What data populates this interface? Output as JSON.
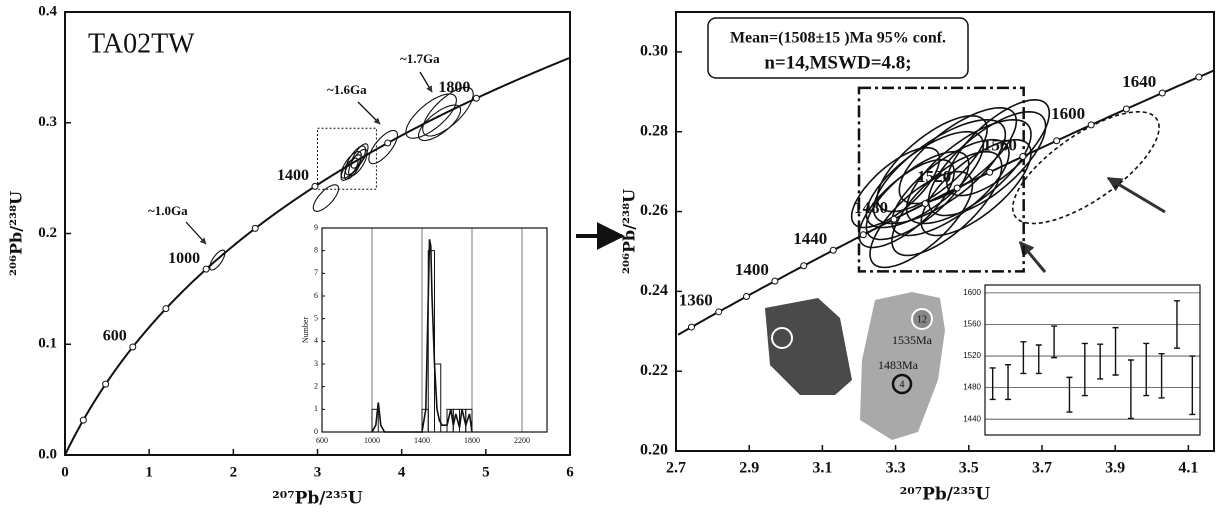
{
  "chart_data": [
    {
      "type": "concordia",
      "title": "TA02TW",
      "x_label": "²⁰⁷Pb/²³⁵U",
      "y_label": "²⁰⁶Pb/²³⁸U",
      "xlim": [
        0,
        6
      ],
      "ylim": [
        0,
        0.4
      ],
      "xticks": [
        0,
        1,
        2,
        3,
        4,
        5,
        6
      ],
      "yticks": [
        {
          "value": 0,
          "label": "0.0"
        },
        0.1,
        0.2,
        0.3,
        0.4
      ],
      "concordia_ticks": [
        200,
        400,
        600,
        800,
        1000,
        1200,
        1400,
        1600,
        1800
      ],
      "concordia_labels": [
        600,
        1000,
        1400,
        1800
      ],
      "annotations": [
        "~1.0Ga",
        "~1.6Ga",
        "~1.7Ga"
      ],
      "ellipses": [
        {
          "x": 1.81,
          "y": 0.176,
          "sx": 0.09,
          "sy": 0.009
        },
        {
          "x": 3.1,
          "y": 0.232,
          "sx": 0.15,
          "sy": 0.012
        },
        {
          "x": 3.4,
          "y": 0.262,
          "sx": 0.12,
          "sy": 0.012
        },
        {
          "x": 3.45,
          "y": 0.266,
          "sx": 0.12,
          "sy": 0.013
        },
        {
          "x": 3.42,
          "y": 0.26,
          "sx": 0.1,
          "sy": 0.011
        },
        {
          "x": 3.48,
          "y": 0.264,
          "sx": 0.11,
          "sy": 0.012
        },
        {
          "x": 3.38,
          "y": 0.258,
          "sx": 0.1,
          "sy": 0.01
        },
        {
          "x": 3.5,
          "y": 0.27,
          "sx": 0.1,
          "sy": 0.011
        },
        {
          "x": 3.78,
          "y": 0.278,
          "sx": 0.17,
          "sy": 0.015
        },
        {
          "x": 4.35,
          "y": 0.306,
          "sx": 0.3,
          "sy": 0.02
        },
        {
          "x": 4.55,
          "y": 0.31,
          "sx": 0.3,
          "sy": 0.022
        },
        {
          "x": 4.45,
          "y": 0.3,
          "sx": 0.25,
          "sy": 0.016
        }
      ],
      "zoom_box": {
        "xlim": [
          3.0,
          3.7
        ],
        "ylim": [
          0.24,
          0.295
        ],
        "style": "dotted"
      }
    },
    {
      "type": "histogram",
      "y_label": "Number",
      "xlim": [
        600,
        2400
      ],
      "ylim": [
        0,
        9
      ],
      "xticks": [
        600,
        1000,
        1400,
        1800,
        2200
      ],
      "yticks": [
        0,
        1,
        2,
        3,
        4,
        5,
        6,
        7,
        8,
        9
      ],
      "grid": true,
      "bins": [
        1000,
        1050,
        1100,
        1150,
        1200,
        1250,
        1300,
        1350,
        1400,
        1450,
        1500,
        1550,
        1600,
        1650,
        1700,
        1750,
        1800
      ],
      "counts": [
        1,
        0,
        0,
        0,
        0,
        0,
        0,
        0,
        1,
        8,
        3,
        0,
        1,
        1,
        1,
        1
      ],
      "density": {
        "x": [
          1000,
          1030,
          1050,
          1070,
          1100,
          1400,
          1430,
          1450,
          1460,
          1470,
          1480,
          1500,
          1520,
          1540,
          1560,
          1600,
          1630,
          1650,
          1670,
          1700,
          1720,
          1750,
          1780,
          1800
        ],
        "values": [
          0,
          0.3,
          1.3,
          0.3,
          0,
          0,
          1,
          6,
          8.5,
          8.2,
          6,
          3,
          1,
          0.5,
          0.3,
          0.3,
          1,
          0.3,
          0.8,
          0.2,
          1,
          0.3,
          0.8,
          0
        ]
      }
    },
    {
      "type": "concordia",
      "x_label": "²⁰⁷Pb/²³⁵U",
      "y_label": "²⁰⁶Pb/²³⁸U",
      "xlim": [
        2.7,
        4.17
      ],
      "ylim": [
        0.2,
        0.31
      ],
      "xticks": [
        2.7,
        2.9,
        3.1,
        3.3,
        3.5,
        3.7,
        3.9,
        4.1
      ],
      "yticks": [
        {
          "value": 0.2,
          "label": "0.20"
        },
        0.22,
        0.24,
        0.26,
        0.28,
        {
          "value": 0.3,
          "label": "0.30"
        }
      ],
      "concordia_ticks": [
        1340,
        1360,
        1380,
        1400,
        1420,
        1440,
        1460,
        1480,
        1500,
        1520,
        1540,
        1560,
        1580,
        1600,
        1620,
        1640,
        1660
      ],
      "concordia_labels": [
        1360,
        1400,
        1440,
        1480,
        1520,
        1560,
        1600,
        1640
      ],
      "stats": [
        "Mean=(1508±15 )Ma 95% conf.",
        "n=14,MSWD=4.8;"
      ],
      "image_labels": [
        "12",
        "1535Ma",
        "1483Ma",
        "4"
      ],
      "ellipses": [
        {
          "x": 3.38,
          "y": 0.268,
          "sx": 0.16,
          "sy": 0.012
        },
        {
          "x": 3.42,
          "y": 0.27,
          "sx": 0.18,
          "sy": 0.013
        },
        {
          "x": 3.36,
          "y": 0.264,
          "sx": 0.14,
          "sy": 0.011
        },
        {
          "x": 3.45,
          "y": 0.266,
          "sx": 0.16,
          "sy": 0.012
        },
        {
          "x": 3.4,
          "y": 0.272,
          "sx": 0.15,
          "sy": 0.012
        },
        {
          "x": 3.5,
          "y": 0.27,
          "sx": 0.17,
          "sy": 0.013
        },
        {
          "x": 3.33,
          "y": 0.262,
          "sx": 0.13,
          "sy": 0.011
        },
        {
          "x": 3.47,
          "y": 0.274,
          "sx": 0.16,
          "sy": 0.012
        },
        {
          "x": 3.44,
          "y": 0.262,
          "sx": 0.15,
          "sy": 0.013
        },
        {
          "x": 3.55,
          "y": 0.272,
          "sx": 0.16,
          "sy": 0.013
        },
        {
          "x": 3.37,
          "y": 0.258,
          "sx": 0.14,
          "sy": 0.012
        },
        {
          "x": 3.52,
          "y": 0.266,
          "sx": 0.15,
          "sy": 0.012
        },
        {
          "x": 3.3,
          "y": 0.266,
          "sx": 0.12,
          "sy": 0.01
        },
        {
          "x": 3.58,
          "y": 0.276,
          "sx": 0.14,
          "sy": 0.012
        },
        {
          "x": 3.82,
          "y": 0.271,
          "sx": 0.2,
          "sy": 0.014,
          "line_style": "dashed"
        }
      ],
      "zoom_box": {
        "xlim": [
          3.2,
          3.65
        ],
        "ylim": [
          0.245,
          0.291
        ],
        "style": "dashdot"
      }
    },
    {
      "type": "errorbar",
      "ylim": [
        1420,
        1610
      ],
      "yticks": [
        1440,
        1480,
        1520,
        1560,
        1600
      ],
      "grid": true,
      "values": [
        1485,
        1487,
        1518,
        1516,
        1538,
        1471,
        1503,
        1513,
        1526,
        1478,
        1503,
        1495,
        1560,
        1483
      ],
      "errors": [
        20,
        22,
        20,
        18,
        20,
        22,
        33,
        22,
        30,
        37,
        33,
        28,
        30,
        37
      ]
    }
  ]
}
